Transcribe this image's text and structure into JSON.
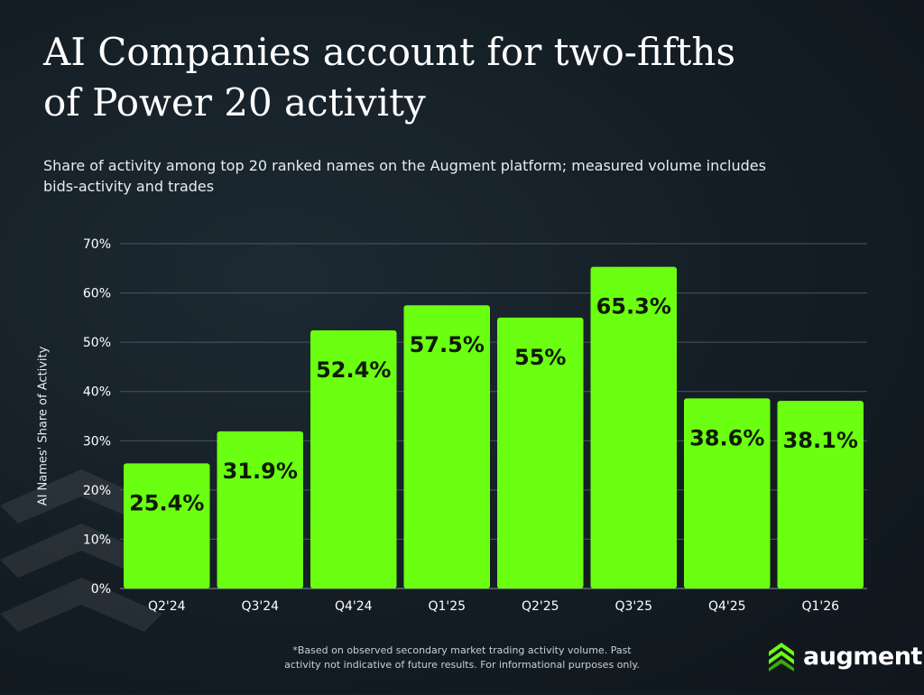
{
  "title_line1": "AI Companies account for two-fifths",
  "title_line2": "of Power 20 activity",
  "subtitle_line1": "Share of activity among top 20 ranked names on the Augment platform; measured volume includes",
  "subtitle_line2": "bids-activity and trades",
  "footnote_line1": "*Based on observed secondary market trading activity volume. Past",
  "footnote_line2": "activity not indicative of future results. For informational purposes only.",
  "logo": {
    "text": "augment",
    "icon": "augment-chevrons-icon"
  },
  "colors": {
    "bar": "#6bff12",
    "grid": "#4a5560",
    "text": "#ffffff",
    "label": "#0d1a05"
  },
  "chart_data": {
    "type": "bar",
    "categories": [
      "Q2'24",
      "Q3'24",
      "Q4'24",
      "Q1'25",
      "Q2'25",
      "Q3'25",
      "Q4'25",
      "Q1'26"
    ],
    "values": [
      25.4,
      31.9,
      52.4,
      57.5,
      55,
      65.3,
      38.6,
      38.1
    ],
    "value_labels": [
      "25.4%",
      "31.9%",
      "52.4%",
      "57.5%",
      "55%",
      "65.3%",
      "38.6%",
      "38.1%"
    ],
    "ylabel": "AI Names' Share of Activity",
    "ylim": [
      0,
      70
    ],
    "yticks": [
      0,
      10,
      20,
      30,
      40,
      50,
      60,
      70
    ],
    "ytick_labels": [
      "0%",
      "10%",
      "20%",
      "30%",
      "40%",
      "50%",
      "60%",
      "70%"
    ],
    "grid": true
  }
}
